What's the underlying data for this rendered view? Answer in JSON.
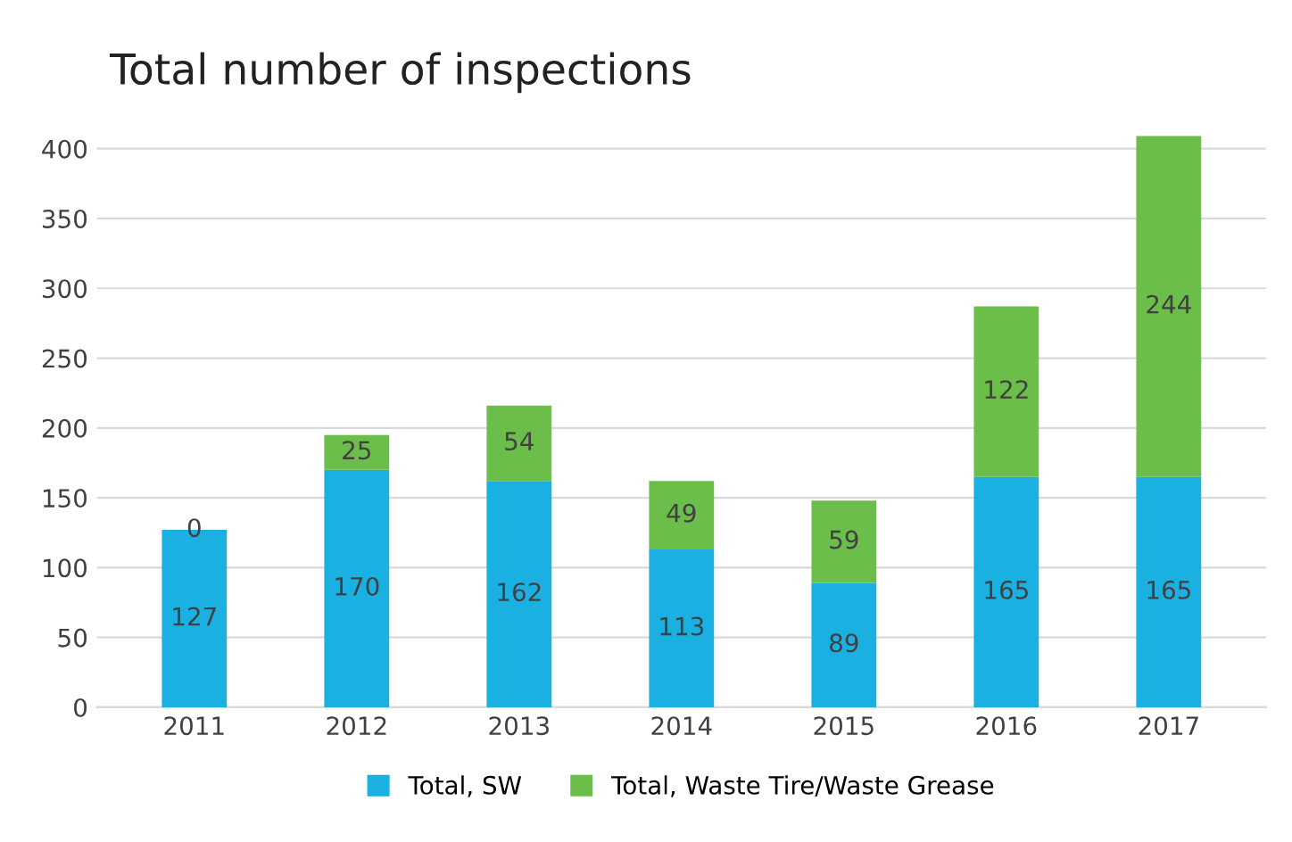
{
  "chart_data": {
    "type": "bar",
    "title": "Total number of inspections",
    "stacked": true,
    "categories": [
      "2011",
      "2012",
      "2013",
      "2014",
      "2015",
      "2016",
      "2017"
    ],
    "series": [
      {
        "name": "Total, SW",
        "color": "#1ab1e2",
        "values": [
          127,
          170,
          162,
          113,
          89,
          165,
          165
        ]
      },
      {
        "name": "Total, Waste Tire/Waste Grease",
        "color": "#6cbe4a",
        "values": [
          0,
          25,
          54,
          49,
          59,
          122,
          244
        ]
      }
    ],
    "ylim": [
      0,
      410
    ],
    "yticks": [
      0,
      50,
      100,
      150,
      200,
      250,
      300,
      350,
      400
    ],
    "grid": "y",
    "legend": "bottom",
    "data_labels": true
  }
}
